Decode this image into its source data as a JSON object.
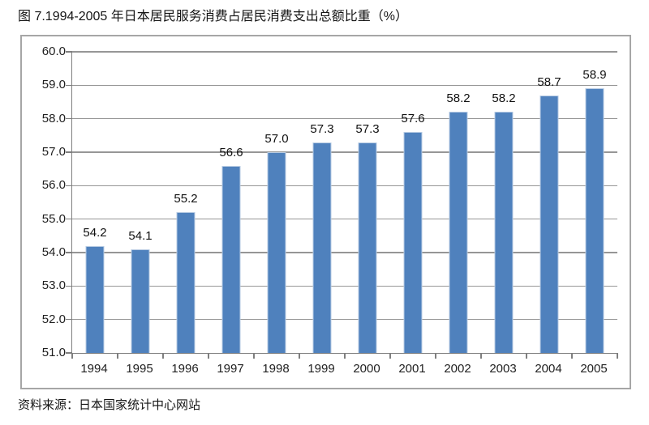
{
  "page": {
    "title": "图 7.1994-2005 年日本居民服务消费占居民消费支出总额比重（%）",
    "source": "资料来源：日本国家统计中心网站"
  },
  "chart_data": {
    "type": "bar",
    "title": "图 7.1994-2005 年日本居民服务消费占居民消费支出总额比重（%）",
    "categories": [
      "1994",
      "1995",
      "1996",
      "1997",
      "1998",
      "1999",
      "2000",
      "2001",
      "2002",
      "2003",
      "2004",
      "2005"
    ],
    "values": [
      54.2,
      54.1,
      55.2,
      56.6,
      57.0,
      57.3,
      57.3,
      57.6,
      58.2,
      58.2,
      58.7,
      58.9
    ],
    "value_labels": [
      "54.2",
      "54.1",
      "55.2",
      "56.6",
      "57.0",
      "57.3",
      "57.3",
      "57.6",
      "58.2",
      "58.2",
      "58.7",
      "58.9"
    ],
    "xlabel": "",
    "ylabel": "",
    "ylim": [
      51.0,
      60.0
    ],
    "ytick_step": 1.0,
    "ytick_labels": [
      "60.0",
      "59.0",
      "58.0",
      "57.0",
      "56.0",
      "55.0",
      "54.0",
      "53.0",
      "52.0",
      "51.0"
    ],
    "grid": true,
    "legend_position": "none",
    "data_labels": true,
    "bar_color": "#4f81bd",
    "bar_edge_color": "#b7cbe3",
    "gridline_color": "#969696",
    "axis_color": "#7f7f7f",
    "source": "资料来源：日本国家统计中心网站"
  }
}
